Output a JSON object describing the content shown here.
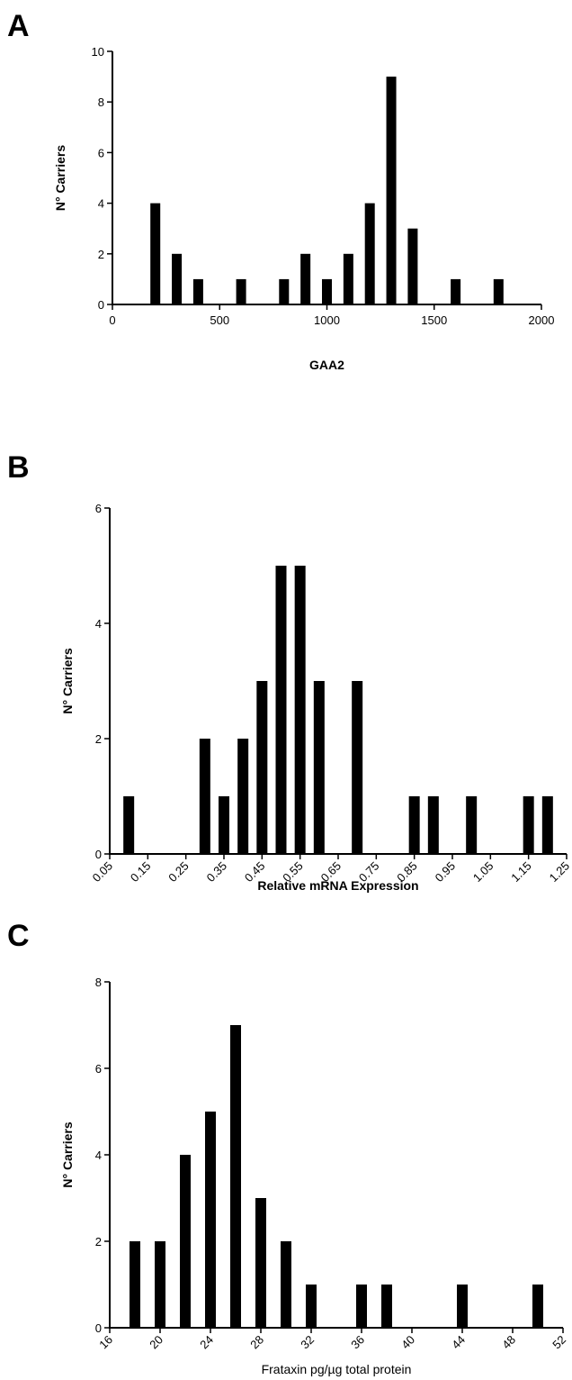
{
  "chart_data": [
    {
      "type": "bar",
      "panel": "A",
      "xlabel": "GAA2",
      "ylabel": "N° Carriers",
      "xlim": [
        0,
        2000
      ],
      "ylim": [
        0,
        10
      ],
      "xticks": [
        "0",
        "500",
        "1000",
        "1500",
        "2000"
      ],
      "yticks": [
        "0",
        "2",
        "4",
        "6",
        "8",
        "10"
      ],
      "x": [
        200,
        300,
        400,
        600,
        800,
        900,
        1000,
        1100,
        1200,
        1300,
        1400,
        1600,
        1800
      ],
      "values": [
        4,
        2,
        1,
        1,
        1,
        2,
        1,
        2,
        4,
        9,
        3,
        1,
        1
      ]
    },
    {
      "type": "bar",
      "panel": "B",
      "xlabel": "Relative mRNA Expression",
      "ylabel": "N° Carriers",
      "xlim": [
        0.05,
        1.25
      ],
      "ylim": [
        0,
        6
      ],
      "xticks": [
        "0.05",
        "0.15",
        "0.25",
        "0.35",
        "0.45",
        "0.55",
        "0.65",
        "0.75",
        "0.85",
        "0.95",
        "1.05",
        "1.15",
        "1.25"
      ],
      "yticks": [
        "0",
        "2",
        "4",
        "6"
      ],
      "x": [
        0.1,
        0.3,
        0.35,
        0.4,
        0.45,
        0.5,
        0.55,
        0.6,
        0.7,
        0.85,
        0.9,
        1.0,
        1.15,
        1.2
      ],
      "values": [
        1,
        2,
        1,
        2,
        3,
        5,
        5,
        3,
        3,
        1,
        1,
        1,
        1,
        1
      ]
    },
    {
      "type": "bar",
      "panel": "C",
      "xlabel": "Frataxin pg/µg total protein",
      "ylabel": "N° Carriers",
      "xlim": [
        16,
        52
      ],
      "ylim": [
        0,
        8
      ],
      "xticks": [
        "16",
        "20",
        "24",
        "28",
        "32",
        "36",
        "40",
        "44",
        "48",
        "52"
      ],
      "yticks": [
        "0",
        "2",
        "4",
        "6",
        "8"
      ],
      "x": [
        18,
        20,
        22,
        24,
        26,
        28,
        30,
        32,
        36,
        38,
        44,
        50
      ],
      "values": [
        2,
        2,
        4,
        5,
        7,
        3,
        2,
        1,
        1,
        1,
        1,
        1
      ]
    }
  ]
}
